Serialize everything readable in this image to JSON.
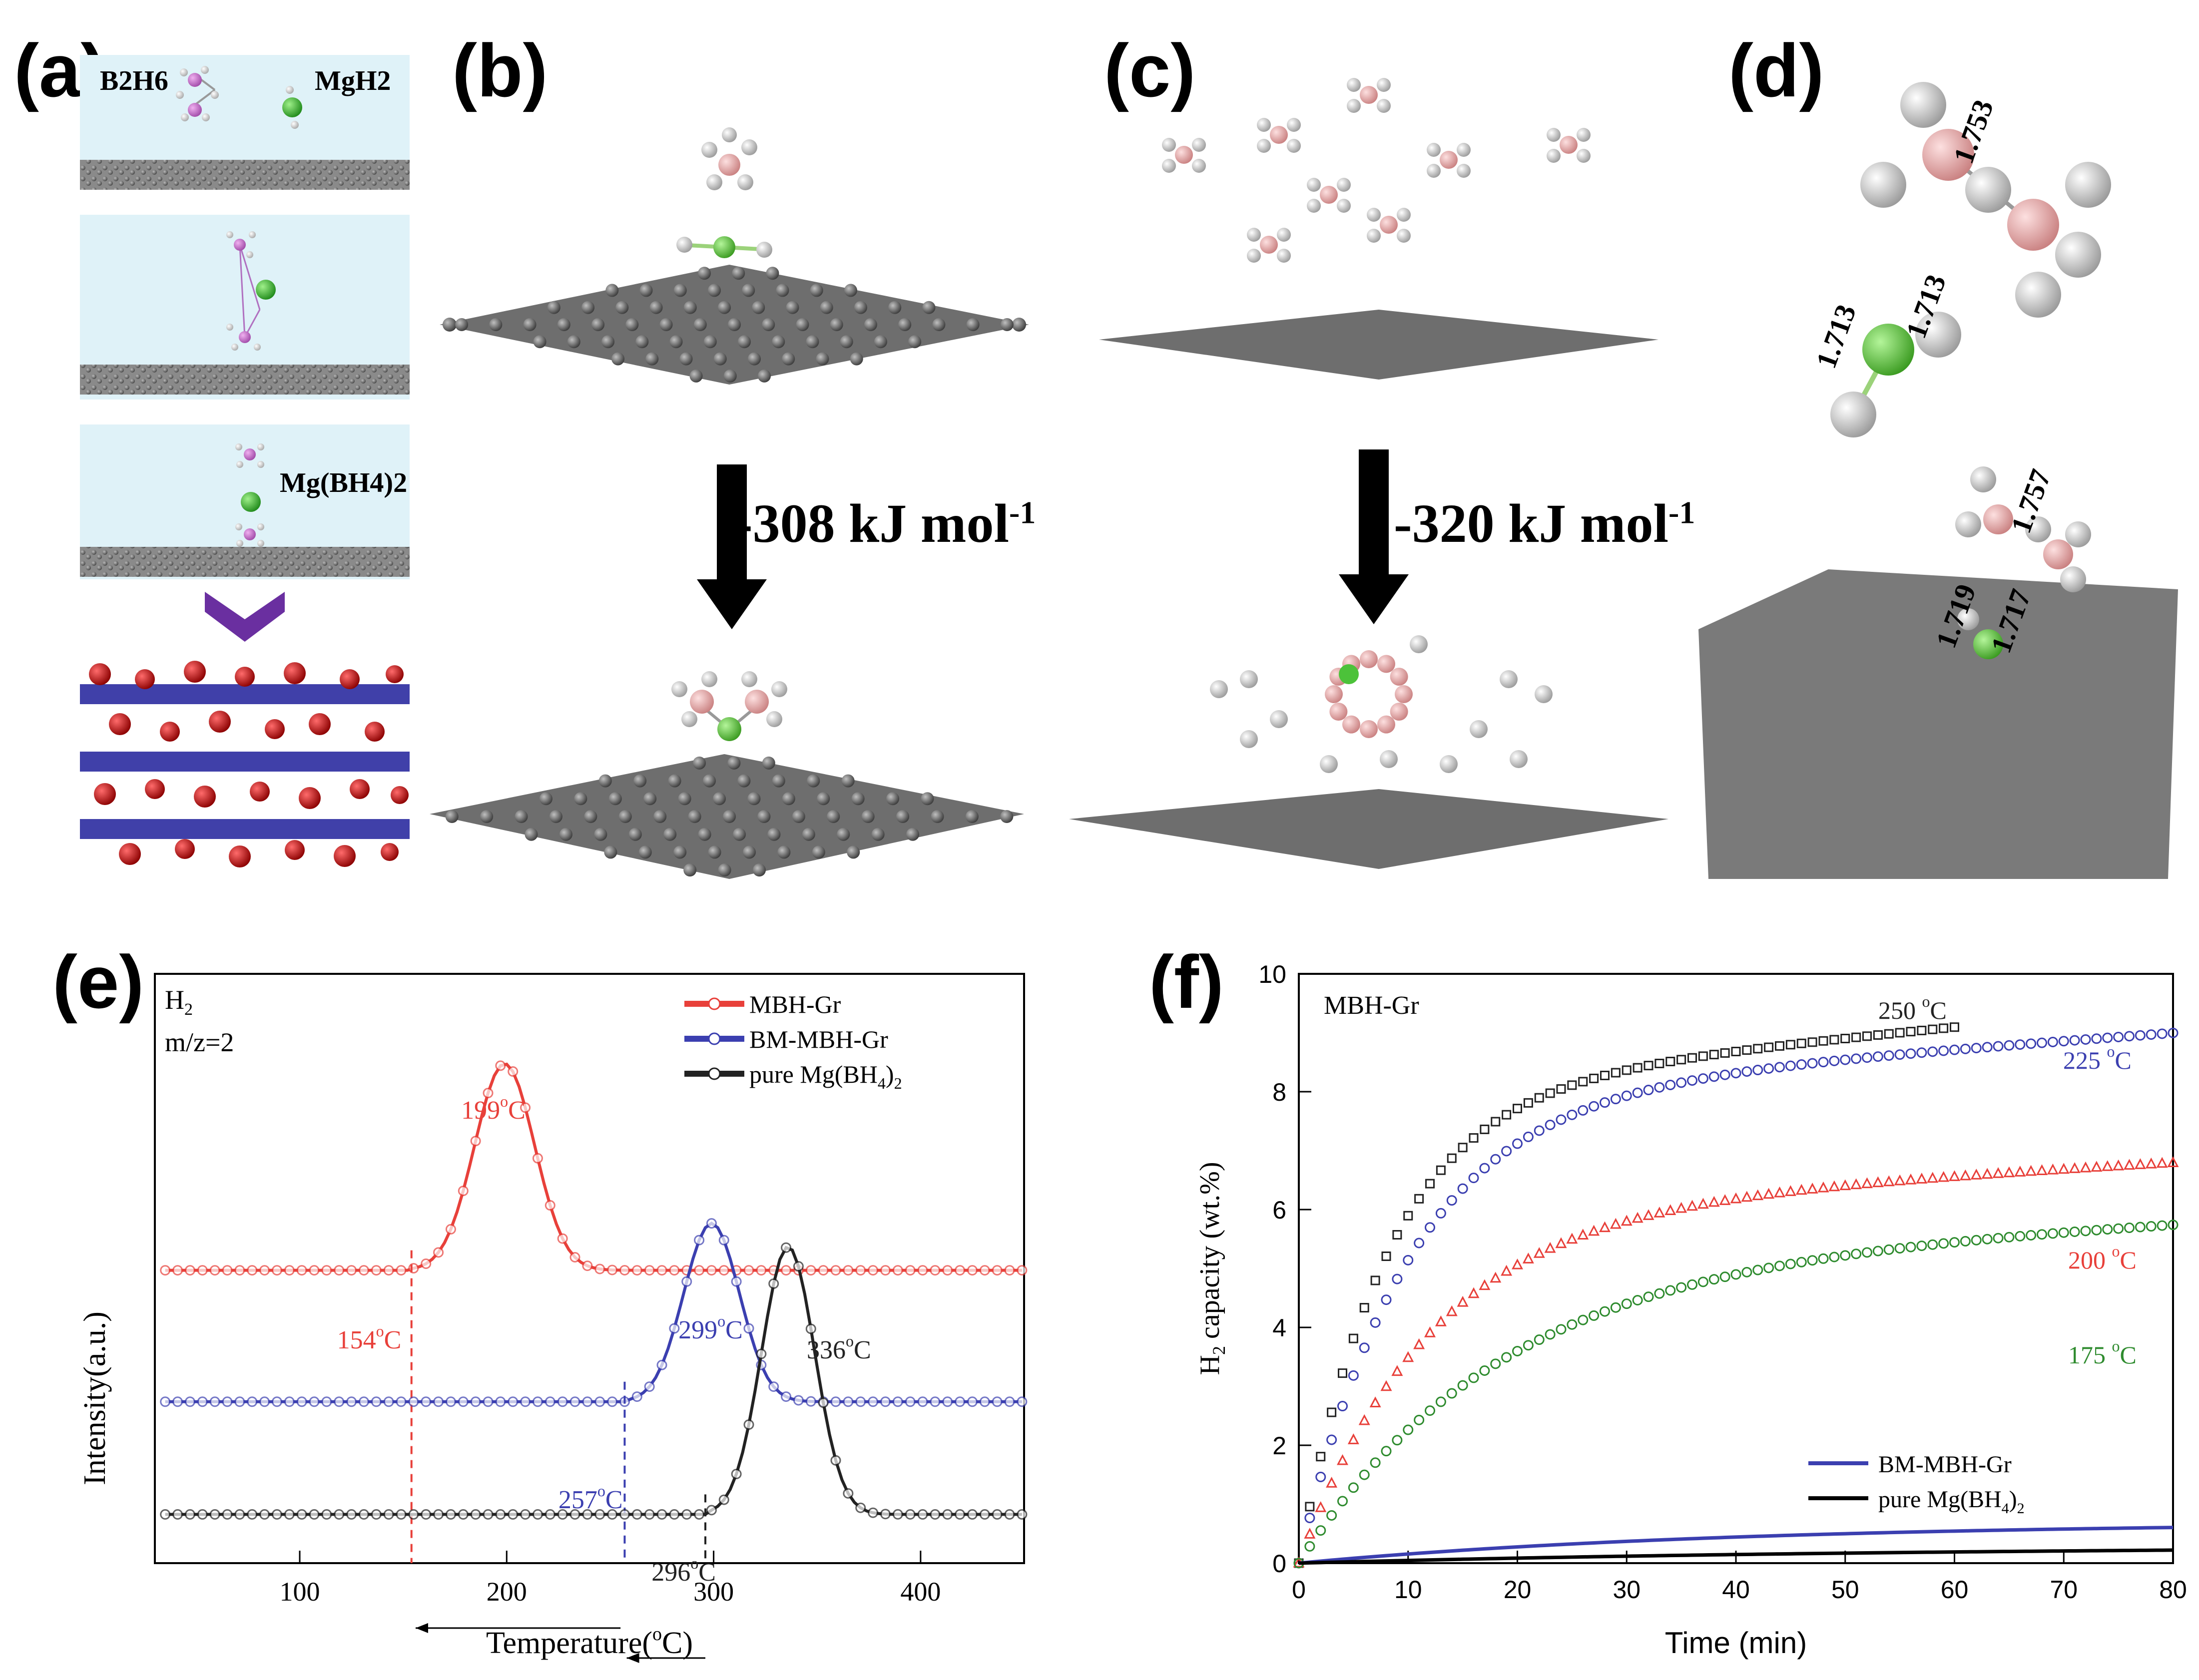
{
  "panels": {
    "a": {
      "letter": "(a)",
      "b2h6": "B2H6",
      "mgh2": "MgH2",
      "mgbh42": "Mg(BH4)2"
    },
    "b": {
      "letter": "(b)",
      "energy": "-308 kJ mol",
      "energy_sup": "-1"
    },
    "c": {
      "letter": "(c)",
      "energy": "-320 kJ mol",
      "energy_sup": "-1"
    },
    "d": {
      "letter": "(d)",
      "bond_top_1": "1.753",
      "bond_top_2": "1.713",
      "bond_top_3": "1.713",
      "bond_bot_1": "1.757",
      "bond_bot_2": "1.719",
      "bond_bot_3": "1.717"
    },
    "e": {
      "letter": "(e)"
    },
    "f": {
      "letter": "(f)"
    }
  },
  "colors": {
    "red": "#e8403a",
    "blue": "#3b3fb0",
    "black": "#222222",
    "green": "#2e8b2e",
    "carbon": "#666666",
    "boron": "#e9b3b3",
    "magnesium": "#4cc23a",
    "hydrogen": "#f2f2f2",
    "light_bg": "#dff2f8",
    "arrow_purple": "#6a2fa0"
  },
  "chart_data": [
    {
      "type": "line",
      "panel": "e",
      "xlabel": "Temperature(",
      "xlabel_unit": "o",
      "xlabel_end": "C)",
      "ylabel": "Intensity(a.u.)",
      "xlim": [
        30,
        450
      ],
      "xticks": [
        "100",
        "200",
        "300",
        "400"
      ],
      "annotations": {
        "gas": "H",
        "gas_sub": "2",
        "mz": "m/z=2",
        "red_peak": "199",
        "red_onset": "154",
        "blue_peak": "299",
        "blue_onset": "257",
        "black_peak": "336",
        "black_onset": "296",
        "deg": "o",
        "c": "C"
      },
      "legend": [
        "MBH-Gr",
        "BM-MBH-Gr",
        "pure Mg(BH"
      ],
      "legend_suffix": ")",
      "legend_sub_4": "4",
      "legend_sub_2": "2",
      "series": [
        {
          "name": "MBH-Gr",
          "baseline": 0.56,
          "onset": 154,
          "peak_x": 199,
          "peak": 1.0,
          "end": 290
        },
        {
          "name": "BM-MBH-Gr",
          "baseline": 0.28,
          "onset": 257,
          "peak_x": 299,
          "peak": 0.66,
          "end": 360
        },
        {
          "name": "pure Mg(BH4)2",
          "baseline": 0.04,
          "onset": 296,
          "peak_x": 336,
          "peak": 0.61,
          "end": 355
        }
      ]
    },
    {
      "type": "line",
      "panel": "f",
      "xlabel": "Time (min)",
      "ylabel": "H",
      "ylabel_sub": "2",
      "ylabel_end": " capacity (wt.%)",
      "xlim": [
        0,
        80
      ],
      "ylim": [
        0,
        10
      ],
      "xticks": [
        "0",
        "10",
        "20",
        "30",
        "40",
        "50",
        "60",
        "70",
        "80"
      ],
      "yticks": [
        "0",
        "2",
        "4",
        "6",
        "8",
        "10"
      ],
      "sample_label": "MBH-Gr",
      "series": [
        {
          "name": "250 °C",
          "label": "250 ",
          "unit": "C",
          "final": 9.1,
          "x_end": 60
        },
        {
          "name": "225 °C",
          "label": "225 ",
          "unit": "C",
          "final": 9.0,
          "x_end": 80
        },
        {
          "name": "200 °C",
          "label": "200 ",
          "unit": "C",
          "final": 6.8,
          "x_end": 80
        },
        {
          "name": "175 °C",
          "label": "175 ",
          "unit": "C",
          "final": 5.8,
          "x_end": 80
        },
        {
          "name": "BM-MBH-Gr",
          "final": 0.7,
          "x_end": 80
        },
        {
          "name": "pure Mg(BH4)2",
          "final": 0.3,
          "x_end": 80
        }
      ],
      "legend": [
        "BM-MBH-Gr",
        "pure Mg(BH"
      ],
      "legend_suffix": ")",
      "legend_sub_4": "4",
      "legend_sub_2": "2"
    }
  ]
}
